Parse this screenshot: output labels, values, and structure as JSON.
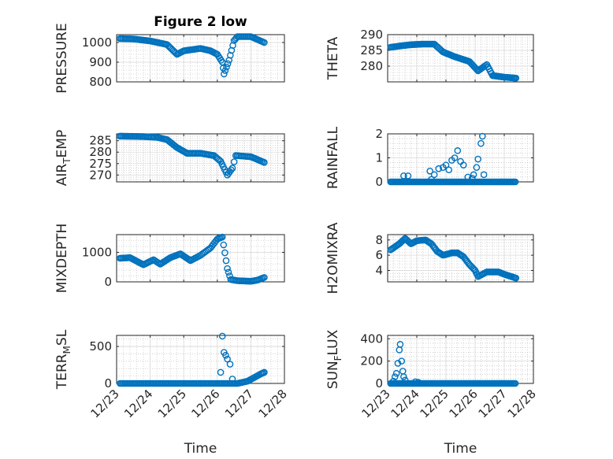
{
  "chart_data": [
    {
      "type": "scatter",
      "title": "Figure 2 low",
      "ylabel": "PRESSURE",
      "ylim": [
        800,
        1040
      ],
      "yticks": [
        800,
        900,
        1000
      ],
      "yticklabels": [
        "800",
        "900",
        "1000"
      ],
      "xlim": [
        0,
        5
      ],
      "xticks": [
        0,
        1,
        2,
        3,
        4,
        5
      ],
      "xticklabels": [
        "12/23",
        "12/24",
        "12/25",
        "12/26",
        "12/27",
        "12/28"
      ],
      "show_xticklabels": false,
      "xlabel": "",
      "grid": true,
      "series": [
        {
          "anchors": [
            [
              0.1,
              1020
            ],
            [
              0.5,
              1018
            ],
            [
              1.0,
              1008
            ],
            [
              1.5,
              990
            ],
            [
              1.8,
              940
            ],
            [
              2.0,
              958
            ],
            [
              2.5,
              970
            ],
            [
              2.8,
              958
            ],
            [
              3.0,
              940
            ],
            [
              3.15,
              900
            ],
            [
              3.2,
              840
            ],
            [
              3.35,
              910
            ],
            [
              3.5,
              1010
            ],
            [
              3.6,
              1030
            ],
            [
              4.0,
              1030
            ],
            [
              4.4,
              1000
            ]
          ]
        }
      ]
    },
    {
      "type": "scatter",
      "ylabel": "THETA",
      "ylim": [
        275,
        290
      ],
      "yticks": [
        280,
        285,
        290
      ],
      "yticklabels": [
        "280",
        "285",
        "290"
      ],
      "xlim": [
        0,
        5
      ],
      "xticks": [
        0,
        1,
        2,
        3,
        4,
        5
      ],
      "xticklabels": [
        "12/23",
        "12/24",
        "12/25",
        "12/26",
        "12/27",
        "12/28"
      ],
      "show_xticklabels": false,
      "xlabel": "",
      "grid": true,
      "series": [
        {
          "anchors": [
            [
              0.1,
              286
            ],
            [
              0.5,
              286.5
            ],
            [
              0.8,
              286.8
            ],
            [
              1.2,
              287
            ],
            [
              1.6,
              287
            ],
            [
              1.9,
              284.5
            ],
            [
              2.3,
              283
            ],
            [
              2.8,
              281.5
            ],
            [
              3.1,
              278.5
            ],
            [
              3.4,
              280.5
            ],
            [
              3.6,
              277
            ],
            [
              4.0,
              276.5
            ],
            [
              4.4,
              276.2
            ]
          ]
        }
      ]
    },
    {
      "type": "scatter",
      "ylabel": "AIR_TEMP",
      "ylim": [
        267,
        288
      ],
      "yticks": [
        270,
        275,
        280,
        285
      ],
      "yticklabels": [
        "270",
        "275",
        "280",
        "285"
      ],
      "xlim": [
        0,
        5
      ],
      "xticks": [
        0,
        1,
        2,
        3,
        4,
        5
      ],
      "xticklabels": [
        "12/23",
        "12/24",
        "12/25",
        "12/26",
        "12/27",
        "12/28"
      ],
      "show_xticklabels": false,
      "xlabel": "",
      "grid": true,
      "series": [
        {
          "anchors": [
            [
              0.1,
              287
            ],
            [
              0.8,
              286.8
            ],
            [
              1.2,
              286.5
            ],
            [
              1.5,
              285.5
            ],
            [
              1.8,
              282
            ],
            [
              2.1,
              279.5
            ],
            [
              2.5,
              279.5
            ],
            [
              2.9,
              278.5
            ],
            [
              3.1,
              276
            ],
            [
              3.3,
              270
            ],
            [
              3.45,
              273
            ],
            [
              3.55,
              278.5
            ],
            [
              4.0,
              278
            ],
            [
              4.4,
              275.5
            ]
          ]
        }
      ]
    },
    {
      "type": "scatter",
      "ylabel": "RAINFALL",
      "ylim": [
        0,
        2
      ],
      "yticks": [
        0,
        1,
        2
      ],
      "yticklabels": [
        "0",
        "1",
        "2"
      ],
      "xlim": [
        0,
        5
      ],
      "xticks": [
        0,
        1,
        2,
        3,
        4,
        5
      ],
      "xticklabels": [
        "12/23",
        "12/24",
        "12/25",
        "12/26",
        "12/27",
        "12/28"
      ],
      "show_xticklabels": false,
      "xlabel": "",
      "grid": true,
      "series": [
        {
          "baseline": 0,
          "baseline_range": [
            0.1,
            4.4
          ],
          "spikes": [
            [
              0.55,
              0.25
            ],
            [
              0.7,
              0.25
            ],
            [
              1.45,
              0.45
            ],
            [
              1.6,
              0.3
            ],
            [
              1.75,
              0.55
            ],
            [
              1.9,
              0.6
            ],
            [
              2.0,
              0.7
            ],
            [
              2.1,
              0.5
            ],
            [
              2.2,
              0.9
            ],
            [
              2.3,
              1.0
            ],
            [
              2.4,
              1.3
            ],
            [
              2.5,
              0.85
            ],
            [
              2.6,
              0.7
            ],
            [
              2.75,
              0.2
            ],
            [
              2.95,
              0.3
            ],
            [
              3.05,
              0.6
            ],
            [
              3.1,
              0.95
            ],
            [
              3.2,
              1.6
            ],
            [
              3.25,
              1.9
            ],
            [
              3.3,
              0.3
            ],
            [
              1.5,
              0.1
            ],
            [
              2.9,
              0.15
            ]
          ]
        }
      ]
    },
    {
      "type": "scatter",
      "ylabel": "MIXDEPTH",
      "ylim": [
        0,
        1600
      ],
      "yticks": [
        0,
        1000
      ],
      "yticklabels": [
        "0",
        "1000"
      ],
      "xlim": [
        0,
        5
      ],
      "xticks": [
        0,
        1,
        2,
        3,
        4,
        5
      ],
      "xticklabels": [
        "12/23",
        "12/24",
        "12/25",
        "12/26",
        "12/27",
        "12/28"
      ],
      "show_xticklabels": false,
      "xlabel": "",
      "grid": true,
      "series": [
        {
          "anchors": [
            [
              0.1,
              800
            ],
            [
              0.4,
              820
            ],
            [
              0.8,
              580
            ],
            [
              1.1,
              750
            ],
            [
              1.3,
              600
            ],
            [
              1.6,
              820
            ],
            [
              1.9,
              950
            ],
            [
              2.2,
              720
            ],
            [
              2.5,
              900
            ],
            [
              2.8,
              1150
            ],
            [
              3.0,
              1450
            ],
            [
              3.15,
              1520
            ],
            [
              3.3,
              450
            ],
            [
              3.4,
              80
            ],
            [
              3.6,
              40
            ],
            [
              4.0,
              20
            ],
            [
              4.2,
              60
            ],
            [
              4.4,
              150
            ]
          ]
        }
      ]
    },
    {
      "type": "scatter",
      "ylabel": "H2OMIXRA",
      "ylim": [
        2.5,
        8.7
      ],
      "yticks": [
        4,
        6,
        8
      ],
      "yticklabels": [
        "4",
        "6",
        "8"
      ],
      "xlim": [
        0,
        5
      ],
      "xticks": [
        0,
        1,
        2,
        3,
        4,
        5
      ],
      "xticklabels": [
        "12/23",
        "12/24",
        "12/25",
        "12/26",
        "12/27",
        "12/28"
      ],
      "show_xticklabels": false,
      "xlabel": "",
      "grid": true,
      "series": [
        {
          "anchors": [
            [
              0.1,
              6.7
            ],
            [
              0.4,
              7.5
            ],
            [
              0.6,
              8.2
            ],
            [
              0.8,
              7.5
            ],
            [
              1.0,
              7.9
            ],
            [
              1.3,
              8.0
            ],
            [
              1.5,
              7.5
            ],
            [
              1.7,
              6.5
            ],
            [
              1.9,
              6.0
            ],
            [
              2.2,
              6.3
            ],
            [
              2.4,
              6.3
            ],
            [
              2.6,
              5.8
            ],
            [
              2.8,
              4.8
            ],
            [
              3.0,
              4.0
            ],
            [
              3.1,
              3.2
            ],
            [
              3.4,
              3.8
            ],
            [
              3.8,
              3.8
            ],
            [
              4.0,
              3.5
            ],
            [
              4.4,
              3.0
            ]
          ]
        }
      ]
    },
    {
      "type": "scatter",
      "ylabel": "TERR_MSL",
      "ylim": [
        0,
        650
      ],
      "yticks": [
        0,
        500
      ],
      "yticklabels": [
        "0",
        "500"
      ],
      "xlim": [
        0,
        5
      ],
      "xticks": [
        0,
        1,
        2,
        3,
        4,
        5
      ],
      "xticklabels": [
        "12/23",
        "12/24",
        "12/25",
        "12/26",
        "12/27",
        "12/28"
      ],
      "show_xticklabels": true,
      "xlabel": "Time",
      "grid": true,
      "series": [
        {
          "baseline": 0,
          "baseline_range": [
            0.1,
            3.6
          ],
          "spikes": [
            [
              3.1,
              150
            ],
            [
              3.15,
              640
            ],
            [
              3.2,
              420
            ],
            [
              3.25,
              380
            ],
            [
              3.3,
              330
            ],
            [
              3.38,
              260
            ],
            [
              3.45,
              60
            ]
          ],
          "anchors": [
            [
              3.6,
              0
            ],
            [
              3.9,
              30
            ],
            [
              4.1,
              80
            ],
            [
              4.3,
              130
            ],
            [
              4.4,
              150
            ]
          ]
        }
      ]
    },
    {
      "type": "scatter",
      "ylabel": "SUN_FLUX",
      "ylim": [
        0,
        430
      ],
      "yticks": [
        0,
        200,
        400
      ],
      "yticklabels": [
        "0",
        "200",
        "400"
      ],
      "xlim": [
        0,
        5
      ],
      "xticks": [
        0,
        1,
        2,
        3,
        4,
        5
      ],
      "xticklabels": [
        "12/23",
        "12/24",
        "12/25",
        "12/26",
        "12/27",
        "12/28"
      ],
      "show_xticklabels": true,
      "xlabel": "Time",
      "grid": true,
      "series": [
        {
          "baseline": 0,
          "baseline_range": [
            0.1,
            4.4
          ],
          "spikes": [
            [
              0.2,
              20
            ],
            [
              0.25,
              60
            ],
            [
              0.3,
              90
            ],
            [
              0.35,
              180
            ],
            [
              0.4,
              300
            ],
            [
              0.43,
              350
            ],
            [
              0.48,
              200
            ],
            [
              0.52,
              110
            ],
            [
              0.55,
              60
            ],
            [
              0.6,
              30
            ],
            [
              0.95,
              15
            ],
            [
              1.05,
              10
            ]
          ]
        }
      ]
    }
  ],
  "colors": {
    "marker": "#0072BD",
    "axis": "#262626"
  }
}
